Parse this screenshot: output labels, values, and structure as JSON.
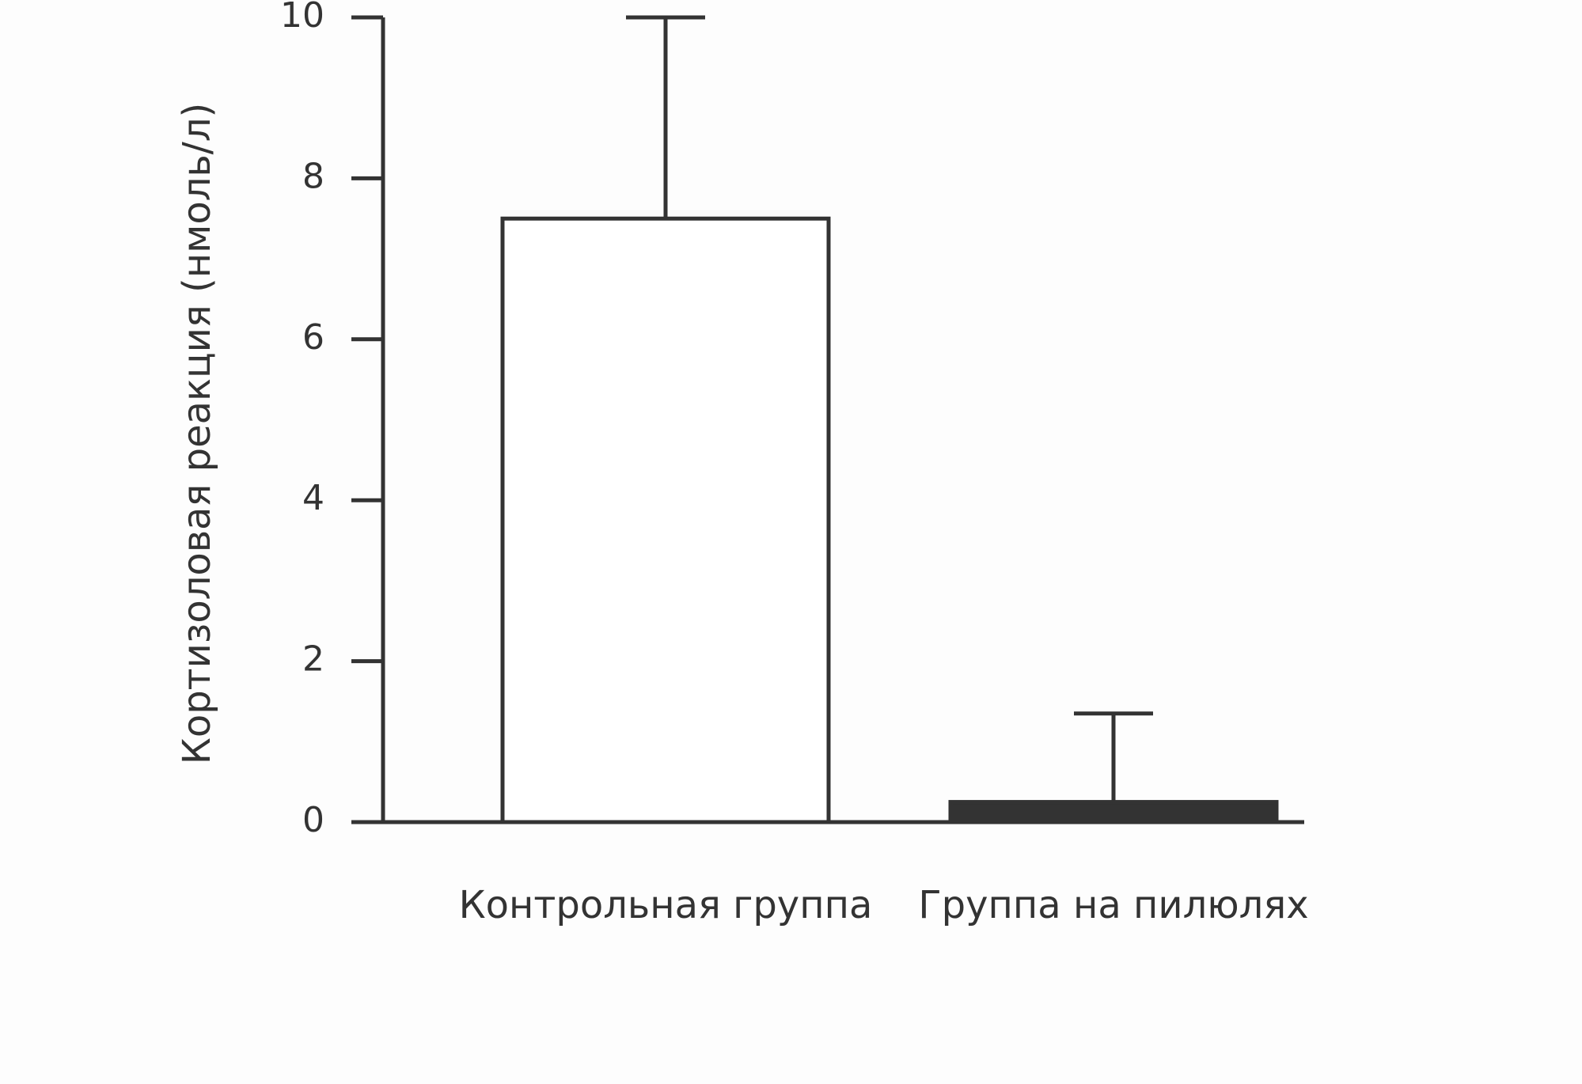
{
  "chart_data": {
    "type": "bar",
    "y_label": "Кортизоловая реакция (нмоль/л)",
    "categories": [
      "Контрольная группа",
      "Группа на пилюлях"
    ],
    "values": [
      7.5,
      0.25
    ],
    "errors": [
      2.5,
      1.1
    ],
    "colors": [
      "#ffffff",
      "#333333"
    ],
    "ylim": [
      0,
      10
    ],
    "yticks": [
      0,
      2,
      4,
      6,
      8,
      10
    ]
  }
}
